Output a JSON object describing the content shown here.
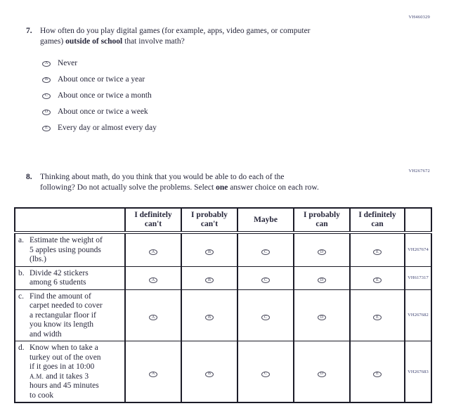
{
  "codes": {
    "q7": "VH460329",
    "q8": "VH267672"
  },
  "q7": {
    "number": "7.",
    "line1": "How often do you play digital games (for example, apps, video games, or computer",
    "line2_pre": "games) ",
    "line2_bold": "outside of school",
    "line2_post": " that involve math?",
    "options": [
      {
        "letter": "A",
        "label": "Never"
      },
      {
        "letter": "B",
        "label": "About once or twice a year"
      },
      {
        "letter": "C",
        "label": "About once or twice a month"
      },
      {
        "letter": "D",
        "label": "About once or twice a week"
      },
      {
        "letter": "E",
        "label": "Every day or almost every day"
      }
    ]
  },
  "q8": {
    "number": "8.",
    "line1": "Thinking about math, do you think that you would be able to do each of the",
    "line2_pre": "following? Do not actually solve the problems. Select ",
    "line2_bold": "one",
    "line2_post": " answer choice on each row.",
    "table": {
      "headers": [
        "",
        "I definitely\ncan't",
        "I probably\ncan't",
        "Maybe",
        "I probably\ncan",
        "I definitely\ncan",
        ""
      ],
      "bubble_letters": [
        "A",
        "B",
        "C",
        "D",
        "E"
      ],
      "smallcaps_token": "A.M.",
      "rows": [
        {
          "letter": "a.",
          "text": "Estimate the weight of\n5 apples using pounds\n(lbs.)",
          "code": "VH267674"
        },
        {
          "letter": "b.",
          "text": "Divide 42 stickers\namong 6 students",
          "code": "VH617317"
        },
        {
          "letter": "c.",
          "text": "Find the amount of\ncarpet needed to cover\na rectangular floor if\nyou know its length\nand width",
          "code": "VH267682"
        },
        {
          "letter": "d.",
          "text": "Know when to take a\nturkey out of the oven\nif it goes in at 10:00\nA.M. and it takes 3\nhours and 45 minutes\nto cook",
          "code": "VH267683"
        }
      ]
    }
  },
  "colors": {
    "text": "#26263a",
    "accession_code": "#3a3f6e",
    "table_border": "#1c1c28"
  }
}
